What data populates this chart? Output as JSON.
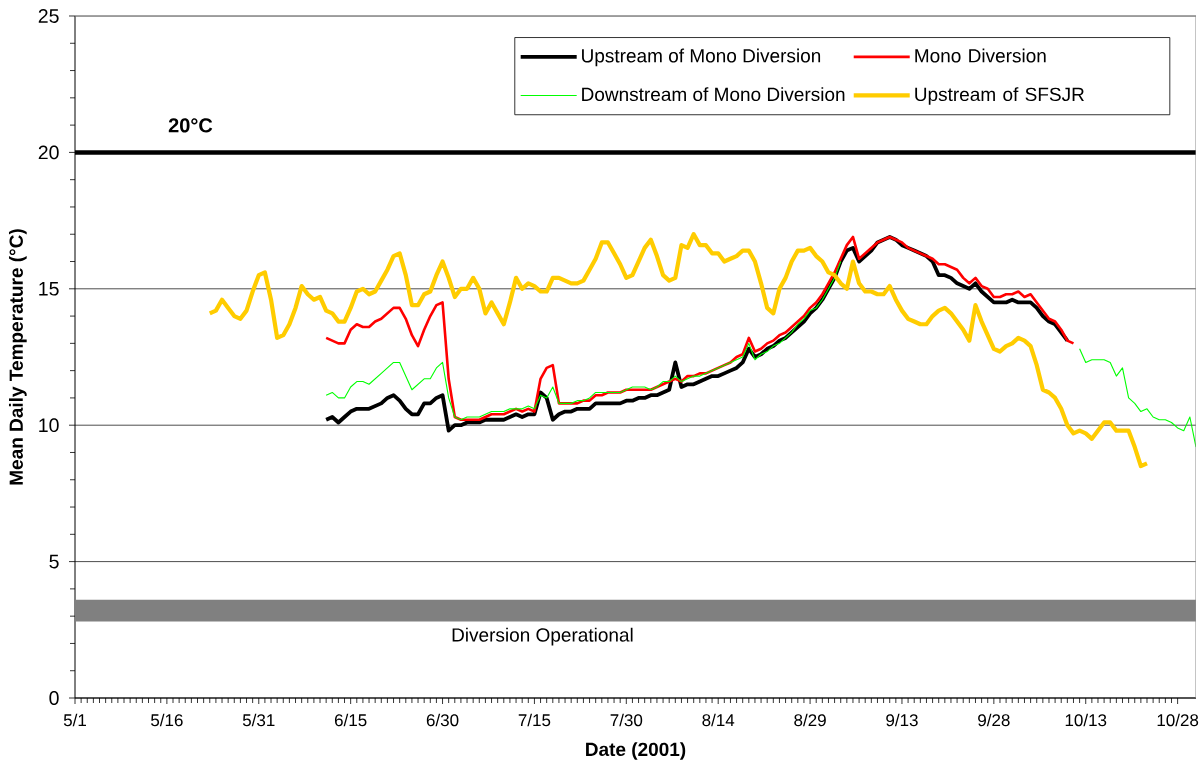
{
  "chart_data": {
    "type": "line",
    "xlabel": "Date (2001)",
    "ylabel": "Mean Daily Temperature (°C)",
    "x": [
      "2001-05-23",
      "2001-05-24",
      "2001-05-25",
      "2001-05-26",
      "2001-05-27",
      "2001-05-28",
      "2001-05-29",
      "2001-05-30",
      "2001-05-31",
      "2001-06-01",
      "2001-06-02",
      "2001-06-03",
      "2001-06-04",
      "2001-06-05",
      "2001-06-06",
      "2001-06-07",
      "2001-06-08",
      "2001-06-09",
      "2001-06-10",
      "2001-06-11",
      "2001-06-12",
      "2001-06-13",
      "2001-06-14",
      "2001-06-15",
      "2001-06-16",
      "2001-06-17",
      "2001-06-18",
      "2001-06-19",
      "2001-06-20",
      "2001-06-21",
      "2001-06-22",
      "2001-06-23",
      "2001-06-24",
      "2001-06-25",
      "2001-06-26",
      "2001-06-27",
      "2001-06-28",
      "2001-06-29",
      "2001-06-30",
      "2001-07-01",
      "2001-07-02",
      "2001-07-03",
      "2001-07-04",
      "2001-07-05",
      "2001-07-06",
      "2001-07-07",
      "2001-07-08",
      "2001-07-09",
      "2001-07-10",
      "2001-07-11",
      "2001-07-12",
      "2001-07-13",
      "2001-07-14",
      "2001-07-15",
      "2001-07-16",
      "2001-07-17",
      "2001-07-18",
      "2001-07-19",
      "2001-07-20",
      "2001-07-21",
      "2001-07-22",
      "2001-07-23",
      "2001-07-24",
      "2001-07-25",
      "2001-07-26",
      "2001-07-27",
      "2001-07-28",
      "2001-07-29",
      "2001-07-30",
      "2001-07-31",
      "2001-08-01",
      "2001-08-02",
      "2001-08-03",
      "2001-08-04",
      "2001-08-05",
      "2001-08-06",
      "2001-08-07",
      "2001-08-08",
      "2001-08-09",
      "2001-08-10",
      "2001-08-11",
      "2001-08-12",
      "2001-08-13",
      "2001-08-14",
      "2001-08-15",
      "2001-08-16",
      "2001-08-17",
      "2001-08-18",
      "2001-08-19",
      "2001-08-20",
      "2001-08-21",
      "2001-08-22",
      "2001-08-23",
      "2001-08-24",
      "2001-08-25",
      "2001-08-26",
      "2001-08-27",
      "2001-08-28",
      "2001-08-29",
      "2001-08-30",
      "2001-08-31",
      "2001-09-01",
      "2001-09-02",
      "2001-09-03",
      "2001-09-04",
      "2001-09-05",
      "2001-09-06",
      "2001-09-07",
      "2001-09-08",
      "2001-09-09",
      "2001-09-10",
      "2001-09-11",
      "2001-09-12",
      "2001-09-13",
      "2001-09-14",
      "2001-09-15",
      "2001-09-16",
      "2001-09-17",
      "2001-09-18",
      "2001-09-19",
      "2001-09-20",
      "2001-09-21",
      "2001-09-22",
      "2001-09-23",
      "2001-09-24",
      "2001-09-25",
      "2001-09-26",
      "2001-09-27",
      "2001-09-28",
      "2001-09-29",
      "2001-09-30",
      "2001-10-01",
      "2001-10-02",
      "2001-10-03",
      "2001-10-04",
      "2001-10-05",
      "2001-10-06",
      "2001-10-07",
      "2001-10-08",
      "2001-10-09",
      "2001-10-10",
      "2001-10-11",
      "2001-10-12",
      "2001-10-13",
      "2001-10-14",
      "2001-10-15",
      "2001-10-16",
      "2001-10-17",
      "2001-10-18",
      "2001-10-19",
      "2001-10-20",
      "2001-10-21",
      "2001-10-22",
      "2001-10-23",
      "2001-10-24",
      "2001-10-25",
      "2001-10-26",
      "2001-10-27",
      "2001-10-28",
      "2001-10-29",
      "2001-10-30",
      "2001-10-31"
    ],
    "series": [
      {
        "name": "Upstream of Mono Diversion",
        "color": "#000000",
        "values": [
          null,
          null,
          null,
          null,
          null,
          null,
          null,
          null,
          null,
          null,
          null,
          null,
          null,
          null,
          null,
          null,
          null,
          null,
          null,
          10.2,
          10.3,
          10.1,
          10.3,
          10.5,
          10.6,
          10.6,
          10.6,
          10.7,
          10.8,
          11.0,
          11.1,
          10.9,
          10.6,
          10.4,
          10.4,
          10.8,
          10.8,
          11.0,
          11.1,
          9.8,
          10.0,
          10.0,
          10.1,
          10.1,
          10.1,
          10.2,
          10.2,
          10.2,
          10.2,
          10.3,
          10.4,
          10.3,
          10.4,
          10.4,
          11.2,
          11.0,
          10.2,
          10.4,
          10.5,
          10.5,
          10.6,
          10.6,
          10.6,
          10.8,
          10.8,
          10.8,
          10.8,
          10.8,
          10.9,
          10.9,
          11.0,
          11.0,
          11.1,
          11.1,
          11.2,
          11.3,
          12.3,
          11.4,
          11.5,
          11.5,
          11.6,
          11.7,
          11.8,
          11.8,
          11.9,
          12.0,
          12.1,
          12.3,
          12.8,
          12.5,
          12.6,
          12.8,
          12.9,
          13.1,
          13.2,
          13.4,
          13.6,
          13.8,
          14.1,
          14.3,
          14.6,
          15.0,
          15.4,
          16.0,
          16.4,
          16.5,
          16.0,
          16.2,
          16.4,
          16.7,
          16.8,
          16.9,
          16.8,
          16.6,
          16.5,
          16.4,
          16.3,
          16.2,
          16.0,
          15.5,
          15.5,
          15.4,
          15.2,
          15.1,
          15.0,
          15.2,
          14.9,
          14.7,
          14.5,
          14.5,
          14.5,
          14.6,
          14.5,
          14.5,
          14.5,
          14.3,
          14.0,
          13.8,
          13.7,
          13.4,
          13.1,
          null,
          null,
          null,
          null,
          null,
          null,
          null,
          null,
          null,
          null,
          null,
          null,
          null,
          null,
          null,
          null,
          null,
          null,
          null,
          null,
          null
        ]
      },
      {
        "name": "Mono Diversion",
        "color": "#ff0000",
        "values": [
          null,
          null,
          null,
          null,
          null,
          null,
          null,
          null,
          null,
          null,
          null,
          null,
          null,
          null,
          null,
          null,
          null,
          null,
          null,
          13.2,
          13.1,
          13.0,
          13.0,
          13.5,
          13.7,
          13.6,
          13.6,
          13.8,
          13.9,
          14.1,
          14.3,
          14.3,
          13.9,
          13.3,
          12.9,
          13.5,
          14.0,
          14.4,
          14.5,
          11.7,
          10.3,
          10.2,
          10.2,
          10.2,
          10.2,
          10.3,
          10.4,
          10.4,
          10.4,
          10.5,
          10.6,
          10.5,
          10.6,
          10.5,
          11.7,
          12.1,
          12.2,
          10.8,
          10.8,
          10.8,
          10.8,
          10.9,
          10.9,
          11.1,
          11.1,
          11.2,
          11.2,
          11.2,
          11.3,
          11.3,
          11.3,
          11.3,
          11.3,
          11.4,
          11.5,
          11.6,
          11.7,
          11.6,
          11.8,
          11.8,
          11.9,
          11.9,
          12.0,
          12.1,
          12.2,
          12.3,
          12.5,
          12.6,
          13.2,
          12.7,
          12.8,
          13.0,
          13.1,
          13.3,
          13.4,
          13.6,
          13.8,
          14.0,
          14.3,
          14.5,
          14.8,
          15.2,
          15.6,
          16.1,
          16.6,
          16.9,
          16.1,
          16.3,
          16.5,
          16.7,
          16.8,
          16.9,
          16.8,
          16.7,
          16.5,
          16.4,
          16.3,
          16.2,
          16.1,
          15.9,
          15.9,
          15.8,
          15.7,
          15.4,
          15.2,
          15.4,
          15.1,
          15.0,
          14.7,
          14.7,
          14.8,
          14.8,
          14.9,
          14.7,
          14.8,
          14.5,
          14.2,
          13.9,
          13.8,
          13.5,
          13.1,
          13.0,
          null,
          null,
          null,
          null,
          null,
          null,
          null,
          null,
          null,
          null,
          null,
          null,
          null,
          null,
          null,
          null,
          null,
          null,
          null,
          null
        ]
      },
      {
        "name": "Downstream of Mono Diversion",
        "color": "#00ff00",
        "values": [
          null,
          null,
          null,
          null,
          null,
          null,
          null,
          null,
          null,
          null,
          null,
          null,
          null,
          null,
          null,
          null,
          null,
          null,
          null,
          11.1,
          11.2,
          11.0,
          11.0,
          11.4,
          11.6,
          11.6,
          11.5,
          11.7,
          11.9,
          12.1,
          12.3,
          12.3,
          11.8,
          11.3,
          11.5,
          11.7,
          11.7,
          12.1,
          12.3,
          11.0,
          10.3,
          10.2,
          10.3,
          10.3,
          10.3,
          10.4,
          10.5,
          10.5,
          10.5,
          10.6,
          10.6,
          10.6,
          10.7,
          10.6,
          11.1,
          11.0,
          11.4,
          10.8,
          10.8,
          10.8,
          10.9,
          10.9,
          11.0,
          11.2,
          11.2,
          11.2,
          11.2,
          11.2,
          11.3,
          11.4,
          11.4,
          11.4,
          11.3,
          11.4,
          11.6,
          11.6,
          11.8,
          11.6,
          11.7,
          11.8,
          11.8,
          11.9,
          12.0,
          12.1,
          12.2,
          12.3,
          12.4,
          12.5,
          13.0,
          12.4,
          12.6,
          12.7,
          12.9,
          13.0,
          13.2,
          13.4,
          13.7,
          13.9,
          14.2,
          14.3,
          14.6,
          15.0,
          15.4,
          16.0,
          null,
          null,
          null,
          null,
          null,
          null,
          null,
          null,
          null,
          null,
          null,
          null,
          null,
          null,
          null,
          null,
          null,
          null,
          null,
          null,
          null,
          null,
          null,
          null,
          null,
          null,
          null,
          null,
          null,
          null,
          null,
          null,
          null,
          null,
          null,
          null,
          null,
          null,
          12.8,
          12.3,
          12.4,
          12.4,
          12.4,
          12.3,
          11.8,
          12.1,
          11.0,
          10.8,
          10.5,
          10.6,
          10.3,
          10.2,
          10.2,
          10.1,
          9.9,
          9.8,
          10.3,
          9.2
        ]
      },
      {
        "name": "Upstream of SFSJR",
        "color": "#ffcc00",
        "values": [
          14.1,
          14.2,
          14.6,
          14.3,
          14.0,
          13.9,
          14.2,
          14.9,
          15.5,
          15.6,
          14.6,
          13.2,
          13.3,
          13.7,
          14.3,
          15.1,
          14.8,
          14.6,
          14.7,
          14.2,
          14.1,
          13.8,
          13.8,
          14.3,
          14.9,
          15.0,
          14.8,
          14.9,
          15.3,
          15.7,
          16.2,
          16.3,
          15.5,
          14.4,
          14.4,
          14.8,
          14.9,
          15.5,
          16.0,
          15.4,
          14.7,
          15.0,
          15.0,
          15.4,
          15.0,
          14.1,
          14.5,
          14.1,
          13.7,
          14.5,
          15.4,
          15.0,
          15.2,
          15.1,
          14.9,
          14.9,
          15.4,
          15.4,
          15.3,
          15.2,
          15.2,
          15.3,
          15.7,
          16.1,
          16.7,
          16.7,
          16.3,
          15.9,
          15.4,
          15.5,
          16.0,
          16.5,
          16.8,
          16.2,
          15.5,
          15.3,
          15.4,
          16.6,
          16.5,
          17.0,
          16.6,
          16.6,
          16.3,
          16.3,
          16.0,
          16.1,
          16.2,
          16.4,
          16.4,
          16.0,
          15.2,
          14.3,
          14.1,
          15.0,
          15.4,
          16.0,
          16.4,
          16.4,
          16.5,
          16.2,
          16.0,
          15.6,
          15.5,
          15.2,
          15.0,
          16.0,
          15.2,
          14.9,
          14.9,
          14.8,
          14.8,
          15.1,
          14.6,
          14.2,
          13.9,
          13.8,
          13.7,
          13.7,
          14.0,
          14.2,
          14.3,
          14.1,
          13.8,
          13.5,
          13.1,
          14.4,
          13.8,
          13.3,
          12.8,
          12.7,
          12.9,
          13.0,
          13.2,
          13.1,
          12.9,
          12.2,
          11.3,
          11.2,
          11.0,
          10.6,
          10.0,
          9.7,
          9.8,
          9.7,
          9.5,
          9.8,
          10.1,
          10.1,
          9.8,
          9.8,
          9.8,
          9.2,
          8.5,
          8.6,
          null,
          null,
          null,
          null,
          null,
          null,
          null,
          null
        ]
      }
    ],
    "xlim": [
      "2001-05-01",
      "2001-10-31"
    ],
    "xticks": [
      {
        "value": "2001-05-01",
        "label": "5/1"
      },
      {
        "value": "2001-05-16",
        "label": "5/16"
      },
      {
        "value": "2001-05-31",
        "label": "5/31"
      },
      {
        "value": "2001-06-15",
        "label": "6/15"
      },
      {
        "value": "2001-06-30",
        "label": "6/30"
      },
      {
        "value": "2001-07-15",
        "label": "7/15"
      },
      {
        "value": "2001-07-30",
        "label": "7/30"
      },
      {
        "value": "2001-08-14",
        "label": "8/14"
      },
      {
        "value": "2001-08-29",
        "label": "8/29"
      },
      {
        "value": "2001-09-13",
        "label": "9/13"
      },
      {
        "value": "2001-09-28",
        "label": "9/28"
      },
      {
        "value": "2001-10-13",
        "label": "10/13"
      },
      {
        "value": "2001-10-28",
        "label": "10/28"
      }
    ],
    "ylim": [
      0,
      25
    ],
    "yticks": [
      0,
      5,
      10,
      15,
      20,
      25
    ],
    "grid": "y",
    "legend": "top right",
    "ref_lines": [
      {
        "axis": "y",
        "value": 20,
        "label": "20°C",
        "color": "#000000"
      }
    ],
    "bands": [
      {
        "axis": "y",
        "from": 2.8,
        "to": 3.6,
        "label": "Diversion Operational",
        "color": "#808080"
      }
    ]
  }
}
